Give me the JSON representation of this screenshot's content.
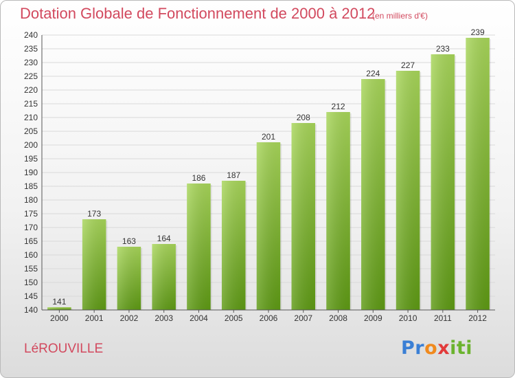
{
  "title": "Dotation Globale de Fonctionnement de 2000 à 2012",
  "subtitle": "(en milliers d'€)",
  "commune": "LéROUVILLE",
  "logo": {
    "letters": [
      "P",
      "r",
      "o",
      "x",
      "i",
      "t",
      "i"
    ],
    "colors": [
      "#3a7fd5",
      "#3a7fd5",
      "#f08a1e",
      "#e23a3a",
      "#6bb32e",
      "#6bb32e",
      "#6bb32e"
    ]
  },
  "colors": {
    "title": "#d2495e",
    "bar_top": "#a8d65a",
    "bar_bottom": "#5e9a14",
    "grid": "#d9d9d9"
  },
  "chart_data": {
    "type": "bar",
    "title": "Dotation Globale de Fonctionnement de 2000 à 2012",
    "subtitle": "(en milliers d'€)",
    "categories": [
      "2000",
      "2001",
      "2002",
      "2003",
      "2004",
      "2005",
      "2006",
      "2007",
      "2008",
      "2009",
      "2010",
      "2011",
      "2012"
    ],
    "values": [
      141,
      173,
      163,
      164,
      186,
      187,
      201,
      208,
      212,
      224,
      227,
      233,
      239
    ],
    "ylim": [
      140,
      240
    ],
    "yticks": [
      140,
      145,
      150,
      155,
      160,
      165,
      170,
      175,
      180,
      185,
      190,
      195,
      200,
      205,
      210,
      215,
      220,
      225,
      230,
      235,
      240
    ],
    "grid": true,
    "xlabel": "",
    "ylabel": ""
  }
}
